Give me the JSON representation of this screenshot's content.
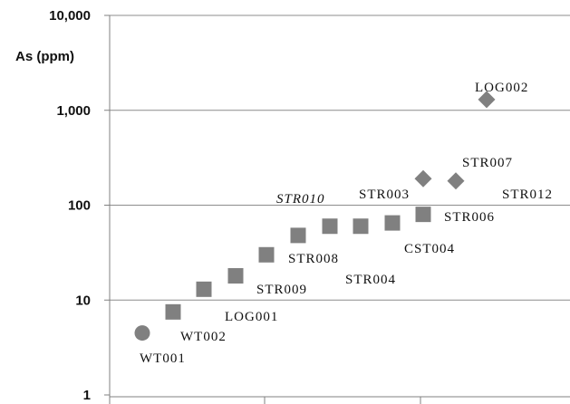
{
  "chart_data": {
    "type": "scatter",
    "title": "",
    "xlabel": "",
    "ylabel": "As (ppm)",
    "yscale": "log",
    "ylim": [
      1,
      10000
    ],
    "yticks": [
      "10,000",
      "1,000",
      "100",
      "10",
      "1"
    ],
    "grid": "horizontal",
    "legend": "none",
    "points": [
      {
        "label": "WT001",
        "x": 1,
        "y": 4.5,
        "marker": "circle",
        "italic": false
      },
      {
        "label": "WT002",
        "x": 2,
        "y": 7.5,
        "marker": "square",
        "italic": false
      },
      {
        "label": "",
        "x": 3,
        "y": 13,
        "marker": "square",
        "italic": false
      },
      {
        "label": "LOG001",
        "x": 4,
        "y": 18,
        "marker": "square",
        "italic": false
      },
      {
        "label": "STR009",
        "x": 5,
        "y": 30,
        "marker": "square",
        "italic": false
      },
      {
        "label": "STR008",
        "x": 6,
        "y": 48,
        "marker": "square",
        "italic": false
      },
      {
        "label": "STR010",
        "x": 7,
        "y": 60,
        "marker": "square",
        "italic": true
      },
      {
        "label": "STR004",
        "x": 8,
        "y": 60,
        "marker": "square",
        "italic": false
      },
      {
        "label": "STR003",
        "x": 9,
        "y": 65,
        "marker": "square",
        "italic": false
      },
      {
        "label": "CST004",
        "x": 10,
        "y": 80,
        "marker": "square",
        "italic": false
      },
      {
        "label": "STR006",
        "x": 10,
        "y": 80,
        "marker": "square",
        "italic": false
      },
      {
        "label": "STR007",
        "x": 11,
        "y": 190,
        "marker": "diamond",
        "italic": false
      },
      {
        "label": "STR012",
        "x": 12,
        "y": 180,
        "marker": "diamond",
        "italic": false
      },
      {
        "label": "LOG002",
        "x": 13,
        "y": 1300,
        "marker": "diamond",
        "italic": false
      }
    ],
    "colors": {
      "marker": "#808080",
      "grid": "#8c8c8c",
      "axis": "#808080"
    }
  }
}
